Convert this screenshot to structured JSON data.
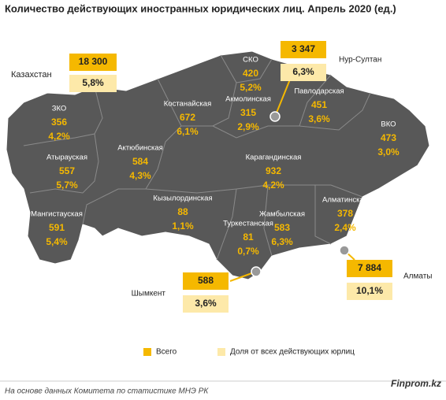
{
  "title": "Количество действующих иностранных юридических лиц. Апрель 2020 (ед.)",
  "country": {
    "name": "Казахстан",
    "total": "18 300",
    "share": "5,8%"
  },
  "regions": [
    {
      "name": "ЗКО",
      "total": "356",
      "share": "4,2%"
    },
    {
      "name": "Атырауская",
      "total": "557",
      "share": "5,7%"
    },
    {
      "name": "Мангистауская",
      "total": "591",
      "share": "5,4%"
    },
    {
      "name": "Актюбинская",
      "total": "584",
      "share": "4,3%"
    },
    {
      "name": "Костанайская",
      "total": "672",
      "share": "6,1%"
    },
    {
      "name": "СКО",
      "total": "420",
      "share": "5,2%"
    },
    {
      "name": "Акмолинская",
      "total": "315",
      "share": "2,9%"
    },
    {
      "name": "Павлодарская",
      "total": "451",
      "share": "3,6%"
    },
    {
      "name": "ВКО",
      "total": "473",
      "share": "3,0%"
    },
    {
      "name": "Карагандинская",
      "total": "932",
      "share": "4,2%"
    },
    {
      "name": "Кызылординская",
      "total": "88",
      "share": "1,1%"
    },
    {
      "name": "Туркестанская",
      "total": "81",
      "share": "0,7%"
    },
    {
      "name": "Жамбылская",
      "total": "583",
      "share": "6,3%"
    },
    {
      "name": "Алматинская",
      "total": "378",
      "share": "2,4%"
    }
  ],
  "cities": [
    {
      "name": "Нур-Султан",
      "total": "3 347",
      "share": "6,3%"
    },
    {
      "name": "Алматы",
      "total": "7 884",
      "share": "10,1%"
    },
    {
      "name": "Шымкент",
      "total": "588",
      "share": "3,6%"
    }
  ],
  "legend": {
    "total": "Всего",
    "share": "Доля от всех действующих юрлиц"
  },
  "footer": {
    "source": "На основе данных  Комитета по статистике МНЭ РК",
    "brand": "Finprom.kz"
  }
}
